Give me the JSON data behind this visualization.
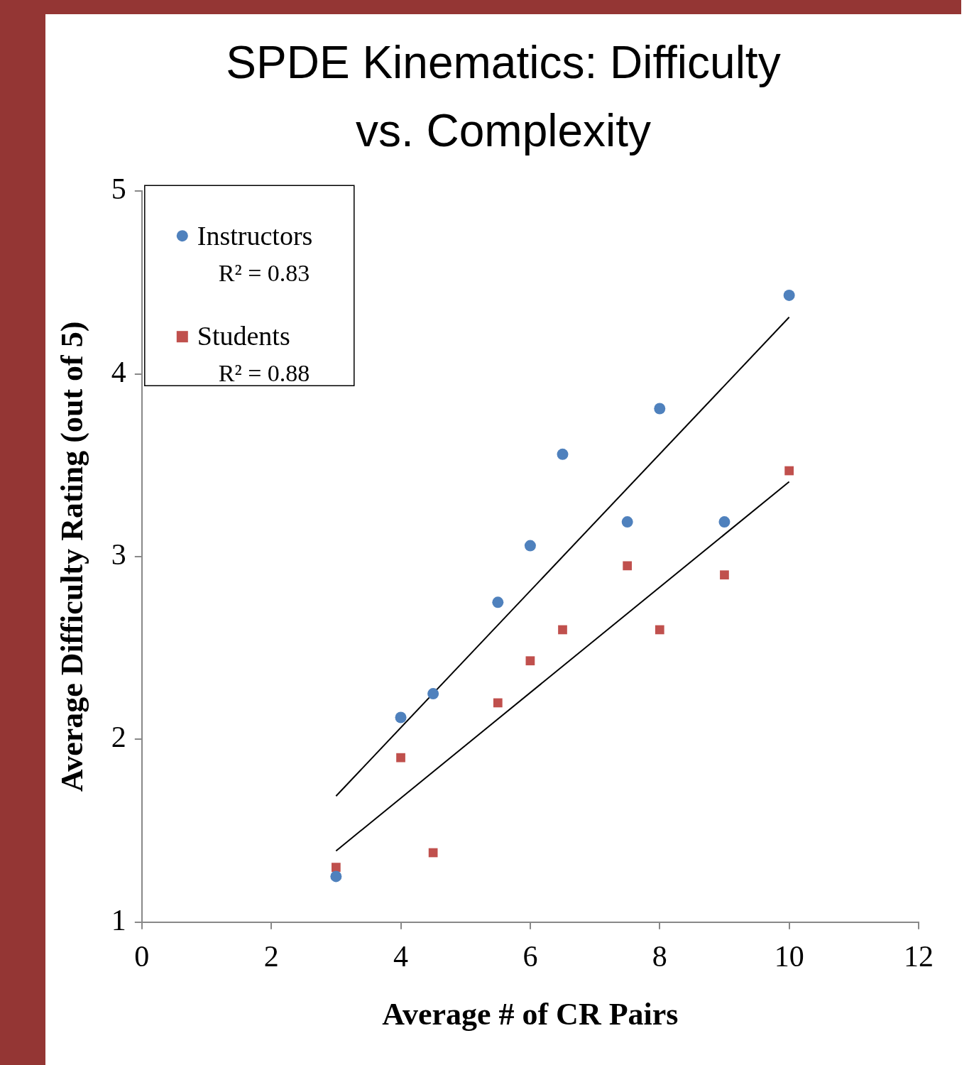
{
  "chart_data": {
    "type": "scatter",
    "title": "SPDE Kinematics: Difficulty vs. Complexity",
    "xlabel": "Average # of CR Pairs",
    "ylabel": "Average Difficulty Rating (out of 5)",
    "xlim": [
      0,
      12
    ],
    "xticks": [
      0,
      2,
      4,
      6,
      8,
      10,
      12
    ],
    "ylim": [
      1,
      5
    ],
    "yticks": [
      1,
      2,
      3,
      4,
      5
    ],
    "grid": false,
    "legend": "top left",
    "annotations": [
      "R² = 0.83",
      "R² = 0.88"
    ],
    "series": [
      {
        "name": "Instructors",
        "color": "#4f81bd",
        "marker": "circle",
        "x": [
          3,
          4,
          4.5,
          5.5,
          6,
          6.5,
          7.5,
          8,
          9,
          10
        ],
        "values": [
          1.25,
          2.12,
          2.25,
          2.75,
          3.06,
          3.56,
          3.19,
          3.81,
          3.19,
          4.43
        ]
      },
      {
        "name": "Students",
        "color": "#c0504d",
        "marker": "square",
        "x": [
          3,
          4,
          4.5,
          5.5,
          6,
          6.5,
          7.5,
          8,
          9,
          10
        ],
        "values": [
          1.3,
          1.9,
          1.38,
          2.2,
          2.43,
          2.6,
          2.95,
          2.6,
          2.9,
          3.47
        ]
      },
      {
        "type": "line",
        "color": "#000000",
        "marker": "none",
        "x": [
          3,
          10
        ],
        "values": [
          1.69,
          4.31
        ]
      },
      {
        "type": "line",
        "color": "#000000",
        "marker": "none",
        "x": [
          3,
          10
        ],
        "values": [
          1.39,
          3.41
        ]
      }
    ]
  }
}
